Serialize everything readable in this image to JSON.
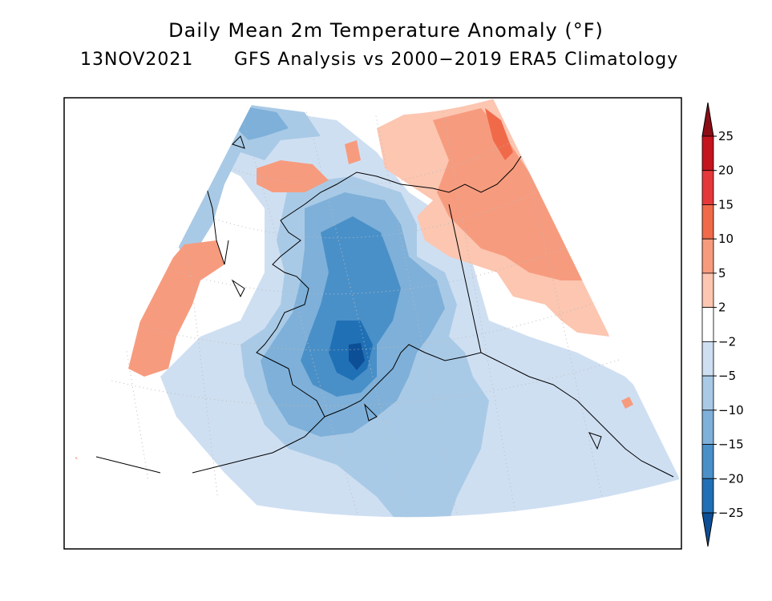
{
  "title": "Daily Mean 2m Temperature Anomaly (°F)",
  "subtitle_date": "13NOV2021",
  "subtitle_desc": "GFS Analysis vs 2000−2019 ERA5 Climatology",
  "colorbar": {
    "labels": [
      "25",
      "20",
      "15",
      "10",
      "5",
      "2",
      "−2",
      "−5",
      "−10",
      "−15",
      "−20",
      "−25"
    ],
    "colors": [
      "#8b0d16",
      "#c4151f",
      "#e5383a",
      "#f06a4a",
      "#f79b7e",
      "#fcc6b1",
      "#ffffff",
      "#cfdff2",
      "#a9cae6",
      "#7eb0d9",
      "#4a90c8",
      "#2070b6",
      "#0d4f96"
    ]
  },
  "map_regions": [
    {
      "name": "anomaly-warm-chukotka",
      "color": "#fcc6b1"
    },
    {
      "name": "anomaly-warm-canada",
      "color": "#fcc6b1"
    },
    {
      "name": "anomaly-warm-canada-inner",
      "color": "#f79b7e"
    },
    {
      "name": "anomaly-cold-alaska-light",
      "color": "#cfdff2"
    },
    {
      "name": "anomaly-cold-alaska-mid",
      "color": "#a9cae6"
    },
    {
      "name": "anomaly-cold-alaska-deep",
      "color": "#7eb0d9"
    },
    {
      "name": "anomaly-cold-alaska-core",
      "color": "#4a90c8"
    },
    {
      "name": "anomaly-cold-alaska-center",
      "color": "#2070b6"
    }
  ]
}
